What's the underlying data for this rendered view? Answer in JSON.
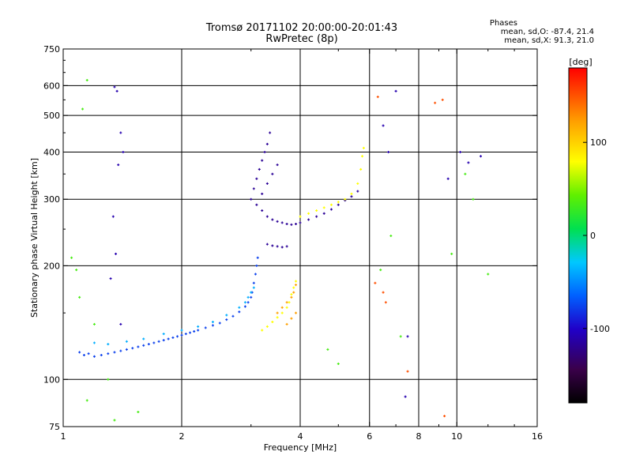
{
  "header": {
    "title": "Tromsø 20171102 20:00:00-20:01:43",
    "subtitle": "RwPretec (8p)",
    "stats_title": "Phases",
    "stats_o": "mean, sd,O: -87.4, 21.4",
    "stats_x": "mean, sd,X:  91.3, 21.0"
  },
  "chart_data": {
    "type": "scatter",
    "xlabel": "Frequency [MHz]",
    "ylabel": "Stationary phase Virtual Height [km]",
    "xscale": "log",
    "yscale": "log",
    "xlim": [
      1,
      16
    ],
    "ylim": [
      75,
      750
    ],
    "xticks": [
      1,
      2,
      4,
      6,
      8,
      10,
      16
    ],
    "xtick_labels": [
      "1",
      "2",
      "4",
      "6",
      "8",
      "10",
      "16"
    ],
    "xgrid": [
      2,
      4,
      6,
      8,
      10
    ],
    "yticks": [
      75,
      100,
      200,
      300,
      400,
      500,
      600,
      750
    ],
    "ytick_labels": [
      "75",
      "100",
      "200",
      "300",
      "400",
      "500",
      "600",
      "750"
    ],
    "ygrid": [
      100,
      200,
      300,
      400,
      500,
      600
    ],
    "colorbar": {
      "label": "[deg]",
      "range": [
        -180,
        180
      ],
      "ticks": [
        100,
        0,
        -100
      ],
      "tick_labels": [
        "100",
        "0",
        "-100"
      ]
    },
    "series": [
      {
        "color_phase": -80,
        "points": [
          [
            1.1,
            118
          ],
          [
            1.13,
            116
          ],
          [
            1.16,
            117
          ],
          [
            1.2,
            115
          ],
          [
            1.25,
            116
          ],
          [
            1.3,
            117
          ],
          [
            1.35,
            118
          ],
          [
            1.4,
            119
          ],
          [
            1.45,
            120
          ],
          [
            1.5,
            121
          ],
          [
            1.55,
            122
          ],
          [
            1.6,
            123
          ],
          [
            1.65,
            124
          ],
          [
            1.7,
            125
          ],
          [
            1.75,
            126
          ],
          [
            1.8,
            127
          ],
          [
            1.85,
            128
          ],
          [
            1.9,
            129
          ],
          [
            1.95,
            130
          ],
          [
            2.0,
            131
          ],
          [
            2.05,
            132
          ],
          [
            2.1,
            133
          ],
          [
            2.15,
            134
          ],
          [
            2.2,
            135
          ],
          [
            2.3,
            137
          ],
          [
            2.4,
            139
          ],
          [
            2.5,
            141
          ],
          [
            2.6,
            144
          ],
          [
            2.7,
            147
          ],
          [
            2.8,
            151
          ],
          [
            2.9,
            156
          ],
          [
            2.95,
            160
          ],
          [
            3.0,
            165
          ],
          [
            3.02,
            170
          ],
          [
            3.05,
            180
          ],
          [
            3.08,
            190
          ],
          [
            3.1,
            200
          ],
          [
            3.12,
            210
          ]
        ]
      },
      {
        "color_phase": -120,
        "points": [
          [
            3.0,
            300
          ],
          [
            3.05,
            320
          ],
          [
            3.1,
            340
          ],
          [
            3.15,
            360
          ],
          [
            3.2,
            380
          ],
          [
            3.25,
            400
          ],
          [
            3.3,
            420
          ],
          [
            3.35,
            450
          ],
          [
            3.2,
            310
          ],
          [
            3.3,
            330
          ],
          [
            3.4,
            350
          ],
          [
            3.5,
            370
          ],
          [
            3.1,
            290
          ],
          [
            3.2,
            280
          ],
          [
            3.3,
            270
          ],
          [
            3.4,
            265
          ],
          [
            3.5,
            262
          ],
          [
            3.6,
            260
          ],
          [
            3.7,
            258
          ],
          [
            3.8,
            257
          ],
          [
            3.9,
            258
          ],
          [
            4.0,
            260
          ],
          [
            4.2,
            265
          ],
          [
            4.4,
            270
          ],
          [
            4.6,
            275
          ],
          [
            4.8,
            282
          ],
          [
            5.0,
            290
          ],
          [
            5.2,
            298
          ],
          [
            5.4,
            305
          ],
          [
            5.6,
            315
          ],
          [
            3.3,
            228
          ],
          [
            3.4,
            226
          ],
          [
            3.5,
            225
          ],
          [
            3.6,
            224
          ],
          [
            3.7,
            225
          ]
        ]
      },
      {
        "color_phase": 100,
        "points": [
          [
            3.2,
            135
          ],
          [
            3.3,
            138
          ],
          [
            3.4,
            142
          ],
          [
            3.5,
            146
          ],
          [
            3.6,
            150
          ],
          [
            3.7,
            155
          ],
          [
            3.75,
            160
          ],
          [
            3.8,
            168
          ],
          [
            3.85,
            175
          ],
          [
            3.9,
            182
          ],
          [
            4.0,
            270
          ],
          [
            4.2,
            275
          ],
          [
            4.4,
            280
          ],
          [
            4.6,
            285
          ],
          [
            4.8,
            290
          ],
          [
            5.0,
            295
          ],
          [
            5.2,
            300
          ],
          [
            5.4,
            310
          ],
          [
            5.6,
            330
          ],
          [
            5.7,
            360
          ],
          [
            5.75,
            390
          ],
          [
            5.8,
            410
          ]
        ]
      },
      {
        "color_phase": 140,
        "points": [
          [
            3.5,
            150
          ],
          [
            3.6,
            155
          ],
          [
            3.7,
            160
          ],
          [
            3.8,
            165
          ],
          [
            3.85,
            170
          ],
          [
            3.9,
            178
          ],
          [
            3.7,
            140
          ],
          [
            3.8,
            145
          ],
          [
            3.9,
            150
          ]
        ]
      },
      {
        "color_phase": -40,
        "points": [
          [
            1.2,
            125
          ],
          [
            1.3,
            124
          ],
          [
            1.45,
            126
          ],
          [
            1.6,
            128
          ],
          [
            1.8,
            132
          ],
          [
            2.0,
            135
          ],
          [
            2.2,
            138
          ],
          [
            2.4,
            142
          ],
          [
            2.6,
            148
          ],
          [
            2.8,
            155
          ],
          [
            2.9,
            160
          ],
          [
            3.0,
            170
          ],
          [
            3.05,
            175
          ],
          [
            2.95,
            165
          ]
        ]
      },
      {
        "color_phase": 160,
        "points": [
          [
            6.2,
            180
          ],
          [
            6.5,
            170
          ],
          [
            6.6,
            160
          ],
          [
            7.5,
            105
          ],
          [
            9.3,
            80
          ],
          [
            6.3,
            560
          ],
          [
            9.2,
            550
          ],
          [
            8.8,
            540
          ]
        ]
      },
      {
        "color_phase": 30,
        "points": [
          [
            1.05,
            210
          ],
          [
            1.15,
            620
          ],
          [
            1.12,
            520
          ],
          [
            1.08,
            195
          ],
          [
            1.1,
            165
          ],
          [
            1.3,
            100
          ],
          [
            1.2,
            140
          ],
          [
            1.55,
            82
          ],
          [
            1.35,
            78
          ],
          [
            1.15,
            88
          ],
          [
            10.5,
            350
          ],
          [
            11.0,
            300
          ],
          [
            9.7,
            215
          ],
          [
            12.0,
            190
          ],
          [
            6.8,
            240
          ],
          [
            6.4,
            195
          ],
          [
            7.2,
            130
          ],
          [
            5.0,
            110
          ],
          [
            4.7,
            120
          ]
        ]
      },
      {
        "color_phase": -110,
        "points": [
          [
            1.35,
            595
          ],
          [
            1.37,
            580
          ],
          [
            1.4,
            450
          ],
          [
            1.42,
            400
          ],
          [
            1.38,
            370
          ],
          [
            1.34,
            270
          ],
          [
            1.36,
            215
          ],
          [
            1.32,
            185
          ],
          [
            1.4,
            140
          ],
          [
            7.0,
            580
          ],
          [
            7.5,
            130
          ],
          [
            7.4,
            90
          ],
          [
            6.5,
            470
          ],
          [
            6.7,
            400
          ],
          [
            10.2,
            400
          ],
          [
            10.7,
            375
          ],
          [
            11.5,
            390
          ],
          [
            9.5,
            340
          ]
        ]
      }
    ]
  }
}
